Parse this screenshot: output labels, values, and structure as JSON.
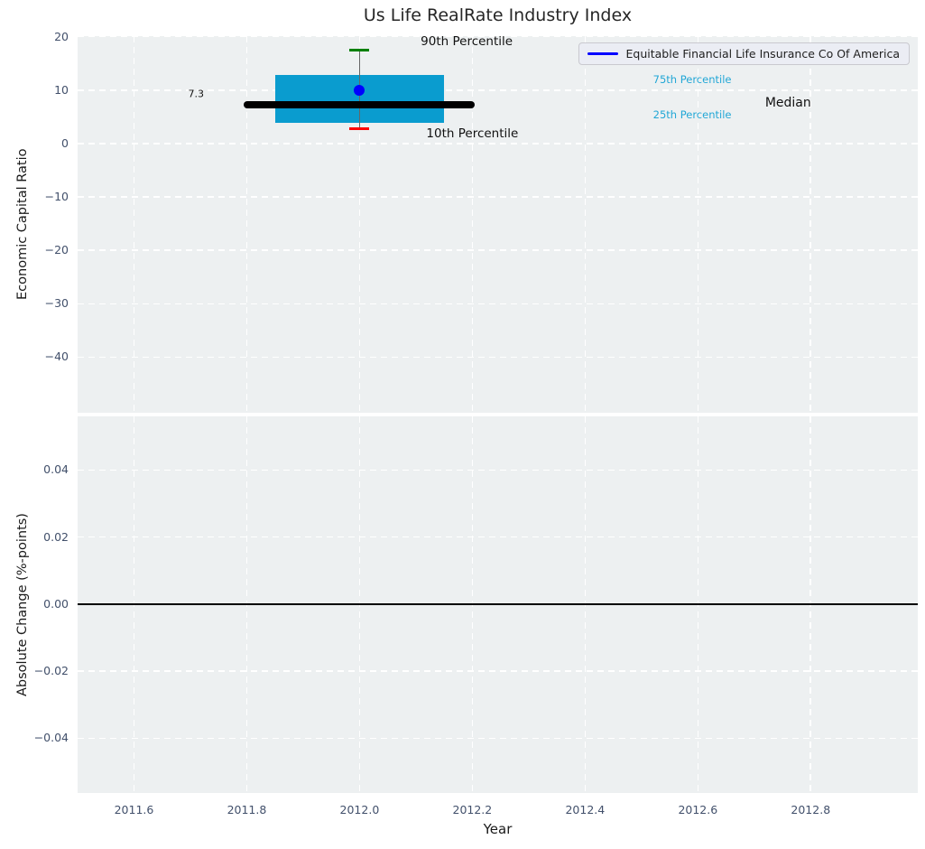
{
  "figure": {
    "title": "Us Life RealRate Industry Index",
    "background_color": "#ffffff",
    "axes_background_color": "#edf0f1",
    "grid_color": "#ffffff"
  },
  "legend": {
    "label": "Equitable Financial Life Insurance Co Of America",
    "line_color": "#0000ff",
    "position": "upper right"
  },
  "chart_data": [
    {
      "type": "boxplot",
      "subplot": "top",
      "title": "Us Life RealRate Industry Index",
      "ylabel": "Economic Capital Ratio",
      "xlim": [
        2011.5,
        2012.99
      ],
      "ylim": [
        -50.4,
        20.1
      ],
      "grid": true,
      "show_xtick_labels": false,
      "yticks": [
        {
          "v": 20,
          "label": "20"
        },
        {
          "v": 10,
          "label": "10"
        },
        {
          "v": 0,
          "label": "0"
        },
        {
          "v": -10,
          "label": "−10"
        },
        {
          "v": -20,
          "label": "−20"
        },
        {
          "v": -30,
          "label": "−30"
        },
        {
          "v": -40,
          "label": "−40"
        }
      ],
      "xticks": [
        {
          "v": 2011.6,
          "label": "2011.6"
        },
        {
          "v": 2011.8,
          "label": "2011.8"
        },
        {
          "v": 2012.0,
          "label": "2012.0"
        },
        {
          "v": 2012.2,
          "label": "2012.2"
        },
        {
          "v": 2012.4,
          "label": "2012.4"
        },
        {
          "v": 2012.6,
          "label": "2012.6"
        },
        {
          "v": 2012.8,
          "label": "2012.8"
        }
      ],
      "box": {
        "x": 2012.0,
        "p10": 2.8,
        "p25": 3.8,
        "median": 7.3,
        "p75": 12.9,
        "p90": 17.5,
        "box_half_width": 0.15,
        "median_half_width": 0.205,
        "box_color": "#0a9ccf",
        "median_color": "#000000",
        "p90_cap_color": "#008000",
        "p10_cap_color": "#ff0000",
        "whisker_color": "#666666"
      },
      "series": [
        {
          "name": "Equitable Financial Life Insurance Co Of America",
          "x": [
            2012.0
          ],
          "y": [
            10.0
          ],
          "color": "#0000ff",
          "marker": "circle"
        }
      ],
      "annotations": [
        {
          "text": "90th Percentile",
          "x": 2012.19,
          "y": 19.1,
          "color": "#111111",
          "size": 13.5,
          "name": "annotation-90th-percentile"
        },
        {
          "text": "10th Percentile",
          "x": 2012.2,
          "y": 1.8,
          "color": "#111111",
          "size": 13.5,
          "name": "annotation-10th-percentile"
        },
        {
          "text": "75th Percentile",
          "x": 2012.59,
          "y": 12.0,
          "color": "#22a7d6",
          "size": 11.5,
          "name": "annotation-75th-percentile"
        },
        {
          "text": "25th Percentile",
          "x": 2012.59,
          "y": 5.4,
          "color": "#22a7d6",
          "size": 11.5,
          "name": "annotation-25th-percentile"
        },
        {
          "text": "Median",
          "x": 2012.76,
          "y": 7.6,
          "color": "#111111",
          "size": 14,
          "name": "annotation-median"
        },
        {
          "text": "7.3",
          "x": 2011.71,
          "y": 9.3,
          "color": "#111111",
          "size": 11,
          "name": "annotation-median-value"
        }
      ]
    },
    {
      "type": "line",
      "subplot": "bottom",
      "ylabel": "Absolute Change (%-points)",
      "xlabel": "Year",
      "xlim": [
        2011.5,
        2012.99
      ],
      "ylim": [
        -0.0563,
        0.056
      ],
      "grid": true,
      "show_xtick_labels": true,
      "yticks": [
        {
          "v": 0.04,
          "label": "0.04"
        },
        {
          "v": 0.02,
          "label": "0.02"
        },
        {
          "v": 0.0,
          "label": "0.00"
        },
        {
          "v": -0.02,
          "label": "−0.02"
        },
        {
          "v": -0.04,
          "label": "−0.04"
        }
      ],
      "xticks": [
        {
          "v": 2011.6,
          "label": "2011.6"
        },
        {
          "v": 2011.8,
          "label": "2011.8"
        },
        {
          "v": 2012.0,
          "label": "2012.0"
        },
        {
          "v": 2012.2,
          "label": "2012.2"
        },
        {
          "v": 2012.4,
          "label": "2012.4"
        },
        {
          "v": 2012.6,
          "label": "2012.6"
        },
        {
          "v": 2012.8,
          "label": "2012.8"
        }
      ],
      "zero_line": {
        "y": 0.0,
        "color": "#000000"
      },
      "series": []
    }
  ]
}
